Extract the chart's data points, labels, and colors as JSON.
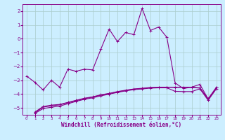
{
  "title": "",
  "xlabel": "Windchill (Refroidissement éolien,°C)",
  "xlim": [
    -0.5,
    23.5
  ],
  "ylim": [
    -5.5,
    2.5
  ],
  "yticks": [
    -5,
    -4,
    -3,
    -2,
    -1,
    0,
    1,
    2
  ],
  "xticks": [
    0,
    1,
    2,
    3,
    4,
    5,
    6,
    7,
    8,
    9,
    10,
    11,
    12,
    13,
    14,
    15,
    16,
    17,
    18,
    19,
    20,
    21,
    22,
    23
  ],
  "bg_color": "#cceeff",
  "grid_color": "#aacccc",
  "line_color": "#880088",
  "line_width": 0.8,
  "markersize": 3,
  "series1_x": [
    0,
    1,
    2,
    3,
    4,
    5,
    6,
    7,
    8,
    9,
    10,
    11,
    12,
    13,
    14,
    15,
    16,
    17,
    18,
    19,
    20,
    21,
    22,
    23
  ],
  "series1_y": [
    -2.7,
    -3.15,
    -3.7,
    -3.0,
    -3.5,
    -2.2,
    -2.35,
    -2.2,
    -2.25,
    -0.75,
    0.7,
    -0.2,
    0.45,
    0.3,
    2.2,
    0.6,
    0.85,
    0.1,
    -3.2,
    -3.6,
    -3.5,
    -3.3,
    -4.35,
    -3.5
  ],
  "series2_x": [
    1,
    2,
    3,
    4,
    5,
    6,
    7,
    8,
    9,
    10,
    11,
    12,
    13,
    14,
    15,
    16,
    17,
    18,
    19,
    20,
    21,
    22,
    23
  ],
  "series2_y": [
    -5.3,
    -4.9,
    -4.8,
    -4.75,
    -4.6,
    -4.45,
    -4.3,
    -4.2,
    -4.05,
    -3.95,
    -3.82,
    -3.72,
    -3.63,
    -3.58,
    -3.52,
    -3.5,
    -3.5,
    -3.5,
    -3.5,
    -3.5,
    -3.55,
    -4.35,
    -3.55
  ],
  "series3_x": [
    1,
    2,
    3,
    4,
    5,
    6,
    7,
    8,
    9,
    10,
    11,
    12,
    13,
    14,
    15,
    16,
    17,
    18,
    19,
    20,
    21,
    22,
    23
  ],
  "series3_y": [
    -5.35,
    -4.95,
    -4.85,
    -4.78,
    -4.63,
    -4.48,
    -4.33,
    -4.22,
    -4.08,
    -3.97,
    -3.84,
    -3.74,
    -3.65,
    -3.6,
    -3.54,
    -3.52,
    -3.52,
    -3.52,
    -3.52,
    -3.52,
    -3.57,
    -4.38,
    -3.57
  ],
  "series4_x": [
    1,
    2,
    3,
    4,
    5,
    6,
    7,
    8,
    9,
    10,
    11,
    12,
    13,
    14,
    15,
    16,
    17,
    18,
    19,
    20,
    21,
    22,
    23
  ],
  "series4_y": [
    -5.4,
    -5.05,
    -4.95,
    -4.87,
    -4.7,
    -4.53,
    -4.38,
    -4.27,
    -4.13,
    -4.01,
    -3.88,
    -3.77,
    -3.68,
    -3.63,
    -3.57,
    -3.55,
    -3.55,
    -3.8,
    -3.82,
    -3.82,
    -3.62,
    -4.45,
    -3.62
  ]
}
